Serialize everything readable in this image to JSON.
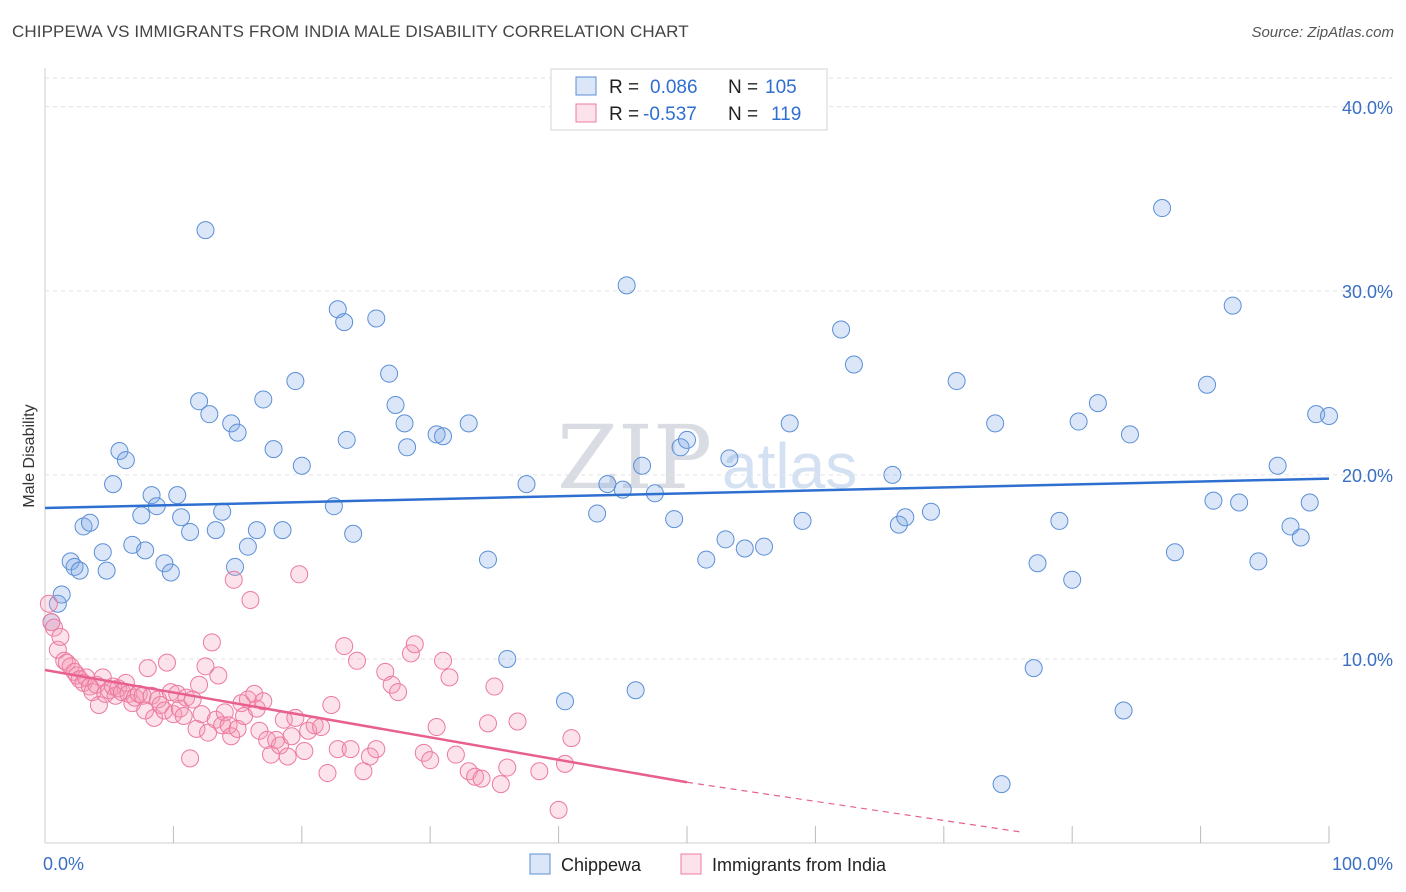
{
  "title": "CHIPPEWA VS IMMIGRANTS FROM INDIA MALE DISABILITY CORRELATION CHART",
  "source": "Source: ZipAtlas.com",
  "watermark": {
    "zip": "ZIP",
    "atlas": "atlas"
  },
  "colors": {
    "blue_fill": "rgba(124,170,230,0.28)",
    "blue_stroke": "#5b8fd6",
    "blue_line": "#2f6fd0",
    "pink_fill": "rgba(244,150,180,0.28)",
    "pink_stroke": "#ec7aa0",
    "pink_line": "#e8608f"
  },
  "legend": {
    "r_label": "R =",
    "n_label": "N =",
    "series": [
      {
        "name": "Chippewa",
        "r": "0.086",
        "n": "105"
      },
      {
        "name": "Immigrants from India",
        "r": "-0.537",
        "n": "119"
      }
    ]
  },
  "chart_data": {
    "type": "scatter",
    "title": "CHIPPEWA VS IMMIGRANTS FROM INDIA MALE DISABILITY CORRELATION CHART",
    "xlabel": "",
    "ylabel": "Male Disability",
    "xlim": [
      0,
      100
    ],
    "ylim": [
      0,
      42
    ],
    "x_ticks": [
      "0.0%",
      "100.0%"
    ],
    "y_ticks": [
      {
        "v": 10,
        "label": "10.0%"
      },
      {
        "v": 20,
        "label": "20.0%"
      },
      {
        "v": 30,
        "label": "30.0%"
      },
      {
        "v": 40,
        "label": "40.0%"
      }
    ],
    "grid": true,
    "series": [
      {
        "name": "Chippewa",
        "trend": {
          "x0": 0,
          "y0": 18.2,
          "x1": 100,
          "y1": 19.8
        },
        "points": [
          [
            0.5,
            12
          ],
          [
            1,
            13
          ],
          [
            1.3,
            13.5
          ],
          [
            2,
            15.3
          ],
          [
            2.3,
            15
          ],
          [
            2.7,
            14.8
          ],
          [
            3,
            17.2
          ],
          [
            3.5,
            17.4
          ],
          [
            4.5,
            15.8
          ],
          [
            4.8,
            14.8
          ],
          [
            5.3,
            19.5
          ],
          [
            5.8,
            21.3
          ],
          [
            6.3,
            20.8
          ],
          [
            6.8,
            16.2
          ],
          [
            7.8,
            15.9
          ],
          [
            8.3,
            18.9
          ],
          [
            8.7,
            18.3
          ],
          [
            9.3,
            15.2
          ],
          [
            7.5,
            17.8
          ],
          [
            9.8,
            14.7
          ],
          [
            10.3,
            18.9
          ],
          [
            10.6,
            17.7
          ],
          [
            11.3,
            16.9
          ],
          [
            12,
            24
          ],
          [
            12.5,
            33.3
          ],
          [
            12.8,
            23.3
          ],
          [
            13.3,
            17
          ],
          [
            13.8,
            18
          ],
          [
            14.5,
            22.8
          ],
          [
            14.8,
            15
          ],
          [
            15,
            22.3
          ],
          [
            15.8,
            16.1
          ],
          [
            16.5,
            17
          ],
          [
            17,
            24.1
          ],
          [
            17.8,
            21.4
          ],
          [
            18.5,
            17
          ],
          [
            19.5,
            25.1
          ],
          [
            20,
            20.5
          ],
          [
            22.5,
            18.3
          ],
          [
            22.8,
            29
          ],
          [
            23.3,
            28.3
          ],
          [
            23.5,
            21.9
          ],
          [
            24,
            16.8
          ],
          [
            25.8,
            28.5
          ],
          [
            26.8,
            25.5
          ],
          [
            27.3,
            23.8
          ],
          [
            28,
            22.8
          ],
          [
            28.2,
            21.5
          ],
          [
            30.5,
            22.2
          ],
          [
            31,
            22.1
          ],
          [
            33,
            22.8
          ],
          [
            34.5,
            15.4
          ],
          [
            36,
            10
          ],
          [
            37.5,
            19.5
          ],
          [
            40.5,
            7.7
          ],
          [
            43,
            17.9
          ],
          [
            43.8,
            19.5
          ],
          [
            45,
            19.2
          ],
          [
            45.3,
            30.3
          ],
          [
            46,
            8.3
          ],
          [
            46.5,
            20.5
          ],
          [
            47.5,
            19.0
          ],
          [
            49,
            17.6
          ],
          [
            49.5,
            21.5
          ],
          [
            50,
            21.9
          ],
          [
            51.5,
            15.4
          ],
          [
            53,
            16.5
          ],
          [
            53.3,
            20.9
          ],
          [
            54.5,
            16
          ],
          [
            56,
            16.1
          ],
          [
            58,
            22.8
          ],
          [
            59,
            17.5
          ],
          [
            62,
            27.9
          ],
          [
            63,
            26
          ],
          [
            66,
            20
          ],
          [
            66.5,
            17.3
          ],
          [
            67,
            17.7
          ],
          [
            69,
            18
          ],
          [
            71,
            25.1
          ],
          [
            74,
            22.8
          ],
          [
            74.5,
            3.2
          ],
          [
            77,
            9.5
          ],
          [
            77.3,
            15.2
          ],
          [
            79,
            17.5
          ],
          [
            80,
            14.3
          ],
          [
            80.5,
            22.9
          ],
          [
            82,
            23.9
          ],
          [
            84,
            7.2
          ],
          [
            84.5,
            22.2
          ],
          [
            87,
            34.5
          ],
          [
            88,
            15.8
          ],
          [
            90.5,
            24.9
          ],
          [
            91,
            18.6
          ],
          [
            92.5,
            29.2
          ],
          [
            93,
            18.5
          ],
          [
            94.5,
            15.3
          ],
          [
            96,
            20.5
          ],
          [
            97,
            17.2
          ],
          [
            97.8,
            16.6
          ],
          [
            98.5,
            18.5
          ],
          [
            99,
            23.3
          ],
          [
            100,
            23.2
          ]
        ]
      },
      {
        "name": "Immigrants from India",
        "trend": {
          "x0": 0,
          "y0": 9.4,
          "x1": 50,
          "y1": 3.3,
          "dash_x1": 76,
          "dash_y1": 0.6
        },
        "points": [
          [
            0.3,
            13
          ],
          [
            0.5,
            12
          ],
          [
            0.7,
            11.7
          ],
          [
            1,
            10.5
          ],
          [
            1.2,
            11.2
          ],
          [
            1.5,
            9.9
          ],
          [
            1.7,
            9.8
          ],
          [
            2,
            9.6
          ],
          [
            2.3,
            9.3
          ],
          [
            2.5,
            9.1
          ],
          [
            2.7,
            8.9
          ],
          [
            3,
            8.7
          ],
          [
            3.2,
            9.0
          ],
          [
            3.5,
            8.5
          ],
          [
            3.7,
            8.2
          ],
          [
            4,
            8.6
          ],
          [
            4.2,
            7.5
          ],
          [
            4.5,
            9.0
          ],
          [
            4.7,
            8.1
          ],
          [
            5,
            8.3
          ],
          [
            5.3,
            8.5
          ],
          [
            5.5,
            8.0
          ],
          [
            5.7,
            8.4
          ],
          [
            6,
            8.2
          ],
          [
            6.3,
            8.7
          ],
          [
            6.5,
            8.1
          ],
          [
            6.8,
            7.6
          ],
          [
            7,
            7.9
          ],
          [
            7.3,
            8.1
          ],
          [
            7.6,
            8.0
          ],
          [
            7.8,
            7.2
          ],
          [
            8,
            9.5
          ],
          [
            8.3,
            8.0
          ],
          [
            8.5,
            6.8
          ],
          [
            8.8,
            7.8
          ],
          [
            9,
            7.5
          ],
          [
            9.3,
            7.2
          ],
          [
            9.5,
            9.8
          ],
          [
            9.8,
            8.2
          ],
          [
            10,
            7.0
          ],
          [
            10.3,
            8.1
          ],
          [
            10.5,
            7.3
          ],
          [
            10.8,
            6.9
          ],
          [
            11,
            7.9
          ],
          [
            11.3,
            4.6
          ],
          [
            11.5,
            7.8
          ],
          [
            11.8,
            6.2
          ],
          [
            12,
            8.6
          ],
          [
            12.2,
            7.0
          ],
          [
            12.5,
            9.6
          ],
          [
            12.7,
            6.0
          ],
          [
            13,
            10.9
          ],
          [
            13.3,
            6.7
          ],
          [
            13.5,
            9.1
          ],
          [
            13.8,
            6.4
          ],
          [
            14,
            7.1
          ],
          [
            14.3,
            6.4
          ],
          [
            14.5,
            5.8
          ],
          [
            14.7,
            14.3
          ],
          [
            15,
            6.2
          ],
          [
            15.3,
            7.6
          ],
          [
            15.5,
            6.9
          ],
          [
            15.8,
            7.8
          ],
          [
            16,
            13.2
          ],
          [
            16.3,
            8.1
          ],
          [
            16.5,
            7.3
          ],
          [
            16.7,
            6.1
          ],
          [
            17,
            7.7
          ],
          [
            17.3,
            5.6
          ],
          [
            17.6,
            4.8
          ],
          [
            18,
            5.6
          ],
          [
            18.3,
            5.3
          ],
          [
            18.6,
            6.7
          ],
          [
            18.9,
            4.7
          ],
          [
            19.2,
            5.8
          ],
          [
            19.5,
            6.8
          ],
          [
            19.8,
            14.6
          ],
          [
            20.2,
            5.0
          ],
          [
            20.5,
            6.1
          ],
          [
            21,
            6.4
          ],
          [
            21.5,
            6.3
          ],
          [
            22,
            3.8
          ],
          [
            22.3,
            7.5
          ],
          [
            22.8,
            5.1
          ],
          [
            23.3,
            10.7
          ],
          [
            23.8,
            5.1
          ],
          [
            24.3,
            9.9
          ],
          [
            24.8,
            3.9
          ],
          [
            25.3,
            4.7
          ],
          [
            25.8,
            5.1
          ],
          [
            26.5,
            9.3
          ],
          [
            27,
            8.6
          ],
          [
            27.5,
            8.2
          ],
          [
            28.5,
            10.3
          ],
          [
            28.8,
            10.8
          ],
          [
            29.5,
            4.9
          ],
          [
            30,
            4.5
          ],
          [
            30.5,
            6.3
          ],
          [
            31,
            9.9
          ],
          [
            31.5,
            9.0
          ],
          [
            32,
            4.8
          ],
          [
            33,
            3.9
          ],
          [
            33.5,
            3.6
          ],
          [
            34,
            3.5
          ],
          [
            34.5,
            6.5
          ],
          [
            35,
            8.5
          ],
          [
            35.5,
            3.2
          ],
          [
            36,
            4.1
          ],
          [
            36.8,
            6.6
          ],
          [
            38.5,
            3.9
          ],
          [
            40,
            1.8
          ],
          [
            40.5,
            4.3
          ],
          [
            41,
            5.7
          ]
        ]
      }
    ]
  },
  "bottom_legend": [
    "Chippewa",
    "Immigrants from India"
  ]
}
